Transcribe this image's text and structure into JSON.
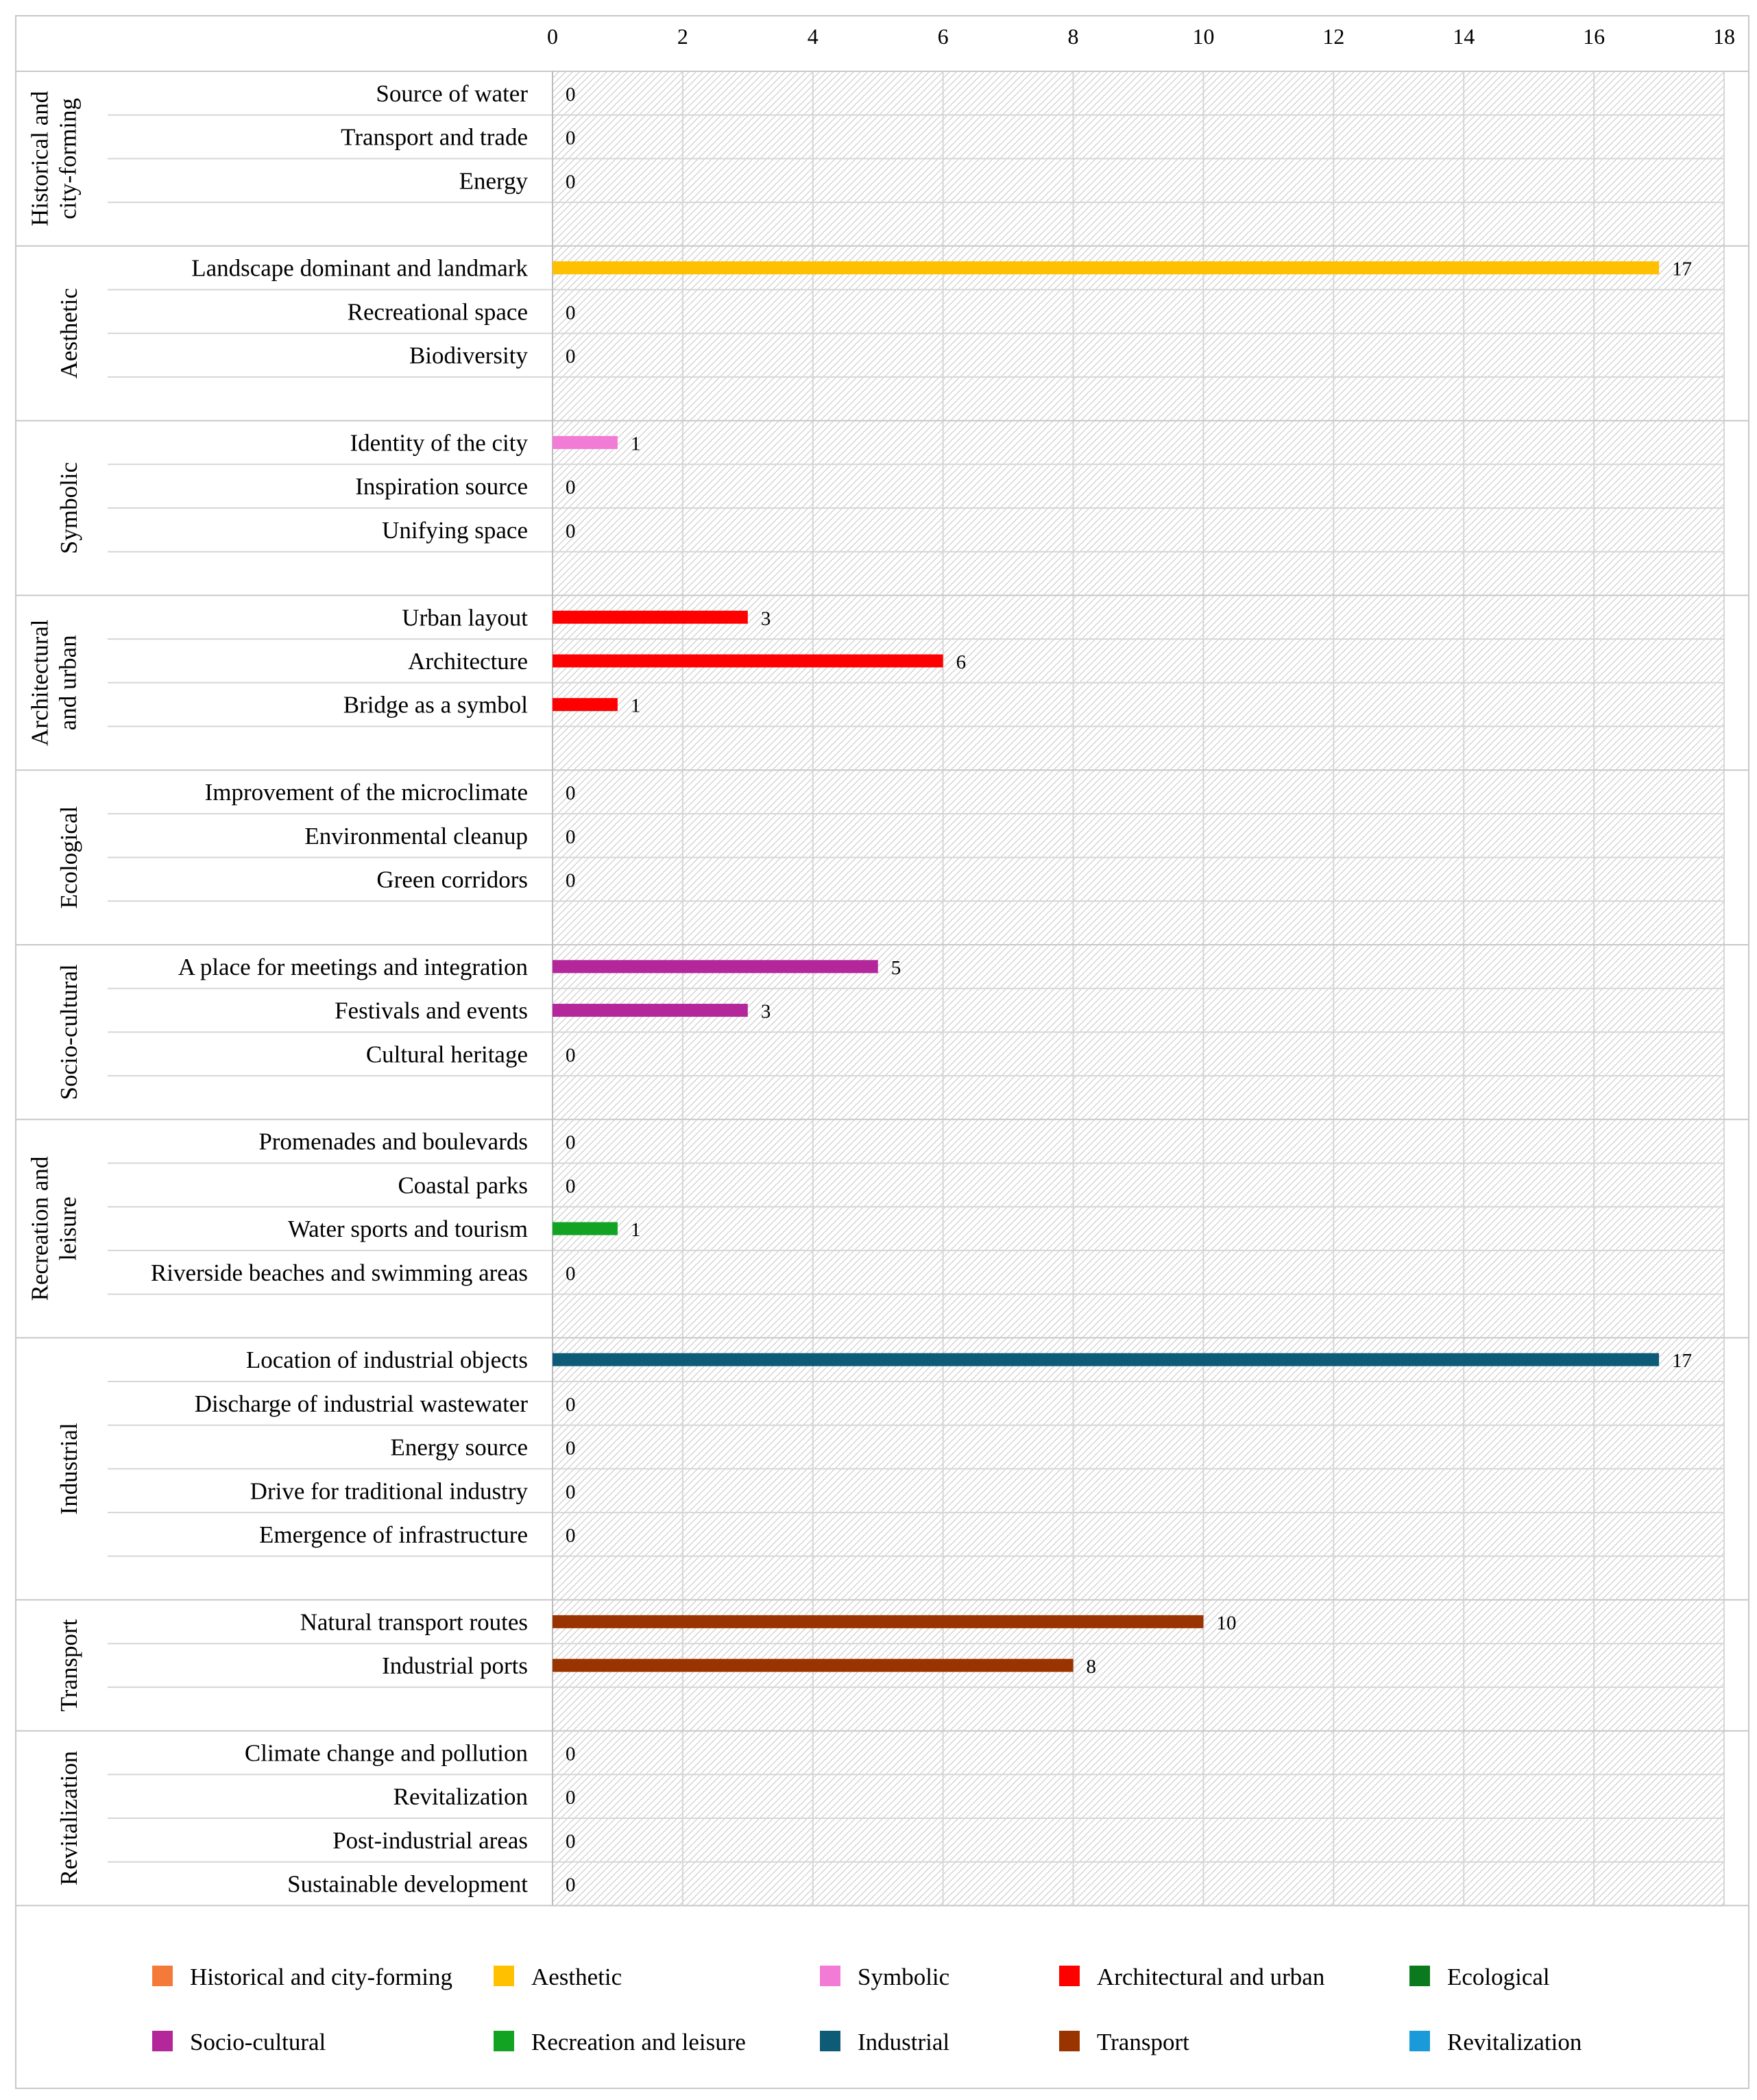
{
  "chart_data": {
    "type": "bar",
    "orientation": "horizontal",
    "xlim": [
      0,
      18
    ],
    "x_ticks": [
      0,
      2,
      4,
      6,
      8,
      10,
      12,
      14,
      16,
      18
    ],
    "x_tick_labels": [
      "0",
      "2",
      "4",
      "6",
      "8",
      "10",
      "12",
      "14",
      "16",
      "18"
    ],
    "grid": true,
    "legend_position": "bottom",
    "groups": [
      {
        "name": "Historical and city-forming",
        "label_lines": [
          "Historical and",
          "city-forming"
        ],
        "color": "#F47A3A",
        "items": [
          {
            "label": "Source of water",
            "value": 0
          },
          {
            "label": "Transport and trade",
            "value": 0
          },
          {
            "label": "Energy",
            "value": 0
          }
        ]
      },
      {
        "name": "Aesthetic",
        "label_lines": [
          "Aesthetic"
        ],
        "color": "#FFC000",
        "items": [
          {
            "label": "Landscape dominant and landmark",
            "value": 17
          },
          {
            "label": "Recreational space",
            "value": 0
          },
          {
            "label": "Biodiversity",
            "value": 0
          }
        ]
      },
      {
        "name": "Symbolic",
        "label_lines": [
          "Symbolic"
        ],
        "color": "#F27BD6",
        "items": [
          {
            "label": "Identity of the city",
            "value": 1
          },
          {
            "label": "Inspiration source",
            "value": 0
          },
          {
            "label": "Unifying space",
            "value": 0
          }
        ]
      },
      {
        "name": "Architectural and urban",
        "label_lines": [
          "Architectural",
          "and urban"
        ],
        "color": "#FF0000",
        "items": [
          {
            "label": "Urban layout",
            "value": 3
          },
          {
            "label": "Architecture",
            "value": 6
          },
          {
            "label": "Bridge as a symbol",
            "value": 1
          }
        ]
      },
      {
        "name": "Ecological",
        "label_lines": [
          "Ecological"
        ],
        "color": "#0B7A1E",
        "items": [
          {
            "label": "Improvement of the microclimate",
            "value": 0
          },
          {
            "label": "Environmental cleanup",
            "value": 0
          },
          {
            "label": "Green corridors",
            "value": 0
          }
        ]
      },
      {
        "name": "Socio-cultural",
        "label_lines": [
          "Socio-cultural"
        ],
        "color": "#B4279A",
        "items": [
          {
            "label": "A place for meetings and integration",
            "value": 5
          },
          {
            "label": "Festivals and events",
            "value": 3
          },
          {
            "label": "Cultural heritage",
            "value": 0
          }
        ]
      },
      {
        "name": "Recreation and leisure",
        "label_lines": [
          "Recreation and",
          "leisure"
        ],
        "color": "#13A323",
        "items": [
          {
            "label": "Promenades and boulevards",
            "value": 0
          },
          {
            "label": "Coastal parks",
            "value": 0
          },
          {
            "label": "Water sports and tourism",
            "value": 1
          },
          {
            "label": "Riverside beaches and swimming areas",
            "value": 0
          }
        ]
      },
      {
        "name": "Industrial",
        "label_lines": [
          "Industrial"
        ],
        "color": "#0E5B78",
        "items": [
          {
            "label": "Location of industrial objects",
            "value": 17
          },
          {
            "label": "Discharge of industrial wastewater",
            "value": 0
          },
          {
            "label": "Energy source",
            "value": 0
          },
          {
            "label": "Drive for traditional industry",
            "value": 0
          },
          {
            "label": "Emergence of infrastructure",
            "value": 0
          }
        ]
      },
      {
        "name": "Transport",
        "label_lines": [
          "Transport"
        ],
        "color": "#993300",
        "items": [
          {
            "label": "Natural transport routes",
            "value": 10
          },
          {
            "label": "Industrial ports",
            "value": 8
          }
        ]
      },
      {
        "name": "Revitalization",
        "label_lines": [
          "Revitalization"
        ],
        "color": "#1A9AD9",
        "items": [
          {
            "label": "Climate change and pollution",
            "value": 0
          },
          {
            "label": "Revitalization",
            "value": 0
          },
          {
            "label": "Post-industrial areas",
            "value": 0
          },
          {
            "label": "Sustainable development",
            "value": 0
          }
        ]
      }
    ],
    "legend": [
      {
        "label": "Historical and city-forming",
        "color": "#F47A3A"
      },
      {
        "label": "Aesthetic",
        "color": "#FFC000"
      },
      {
        "label": "Symbolic",
        "color": "#F27BD6"
      },
      {
        "label": "Architectural and urban",
        "color": "#FF0000"
      },
      {
        "label": "Ecological",
        "color": "#0B7A1E"
      },
      {
        "label": "Socio-cultural",
        "color": "#B4279A"
      },
      {
        "label": "Recreation and leisure",
        "color": "#13A323"
      },
      {
        "label": "Industrial",
        "color": "#0E5B78"
      },
      {
        "label": "Transport",
        "color": "#993300"
      },
      {
        "label": "Revitalization",
        "color": "#1A9AD9"
      }
    ]
  }
}
